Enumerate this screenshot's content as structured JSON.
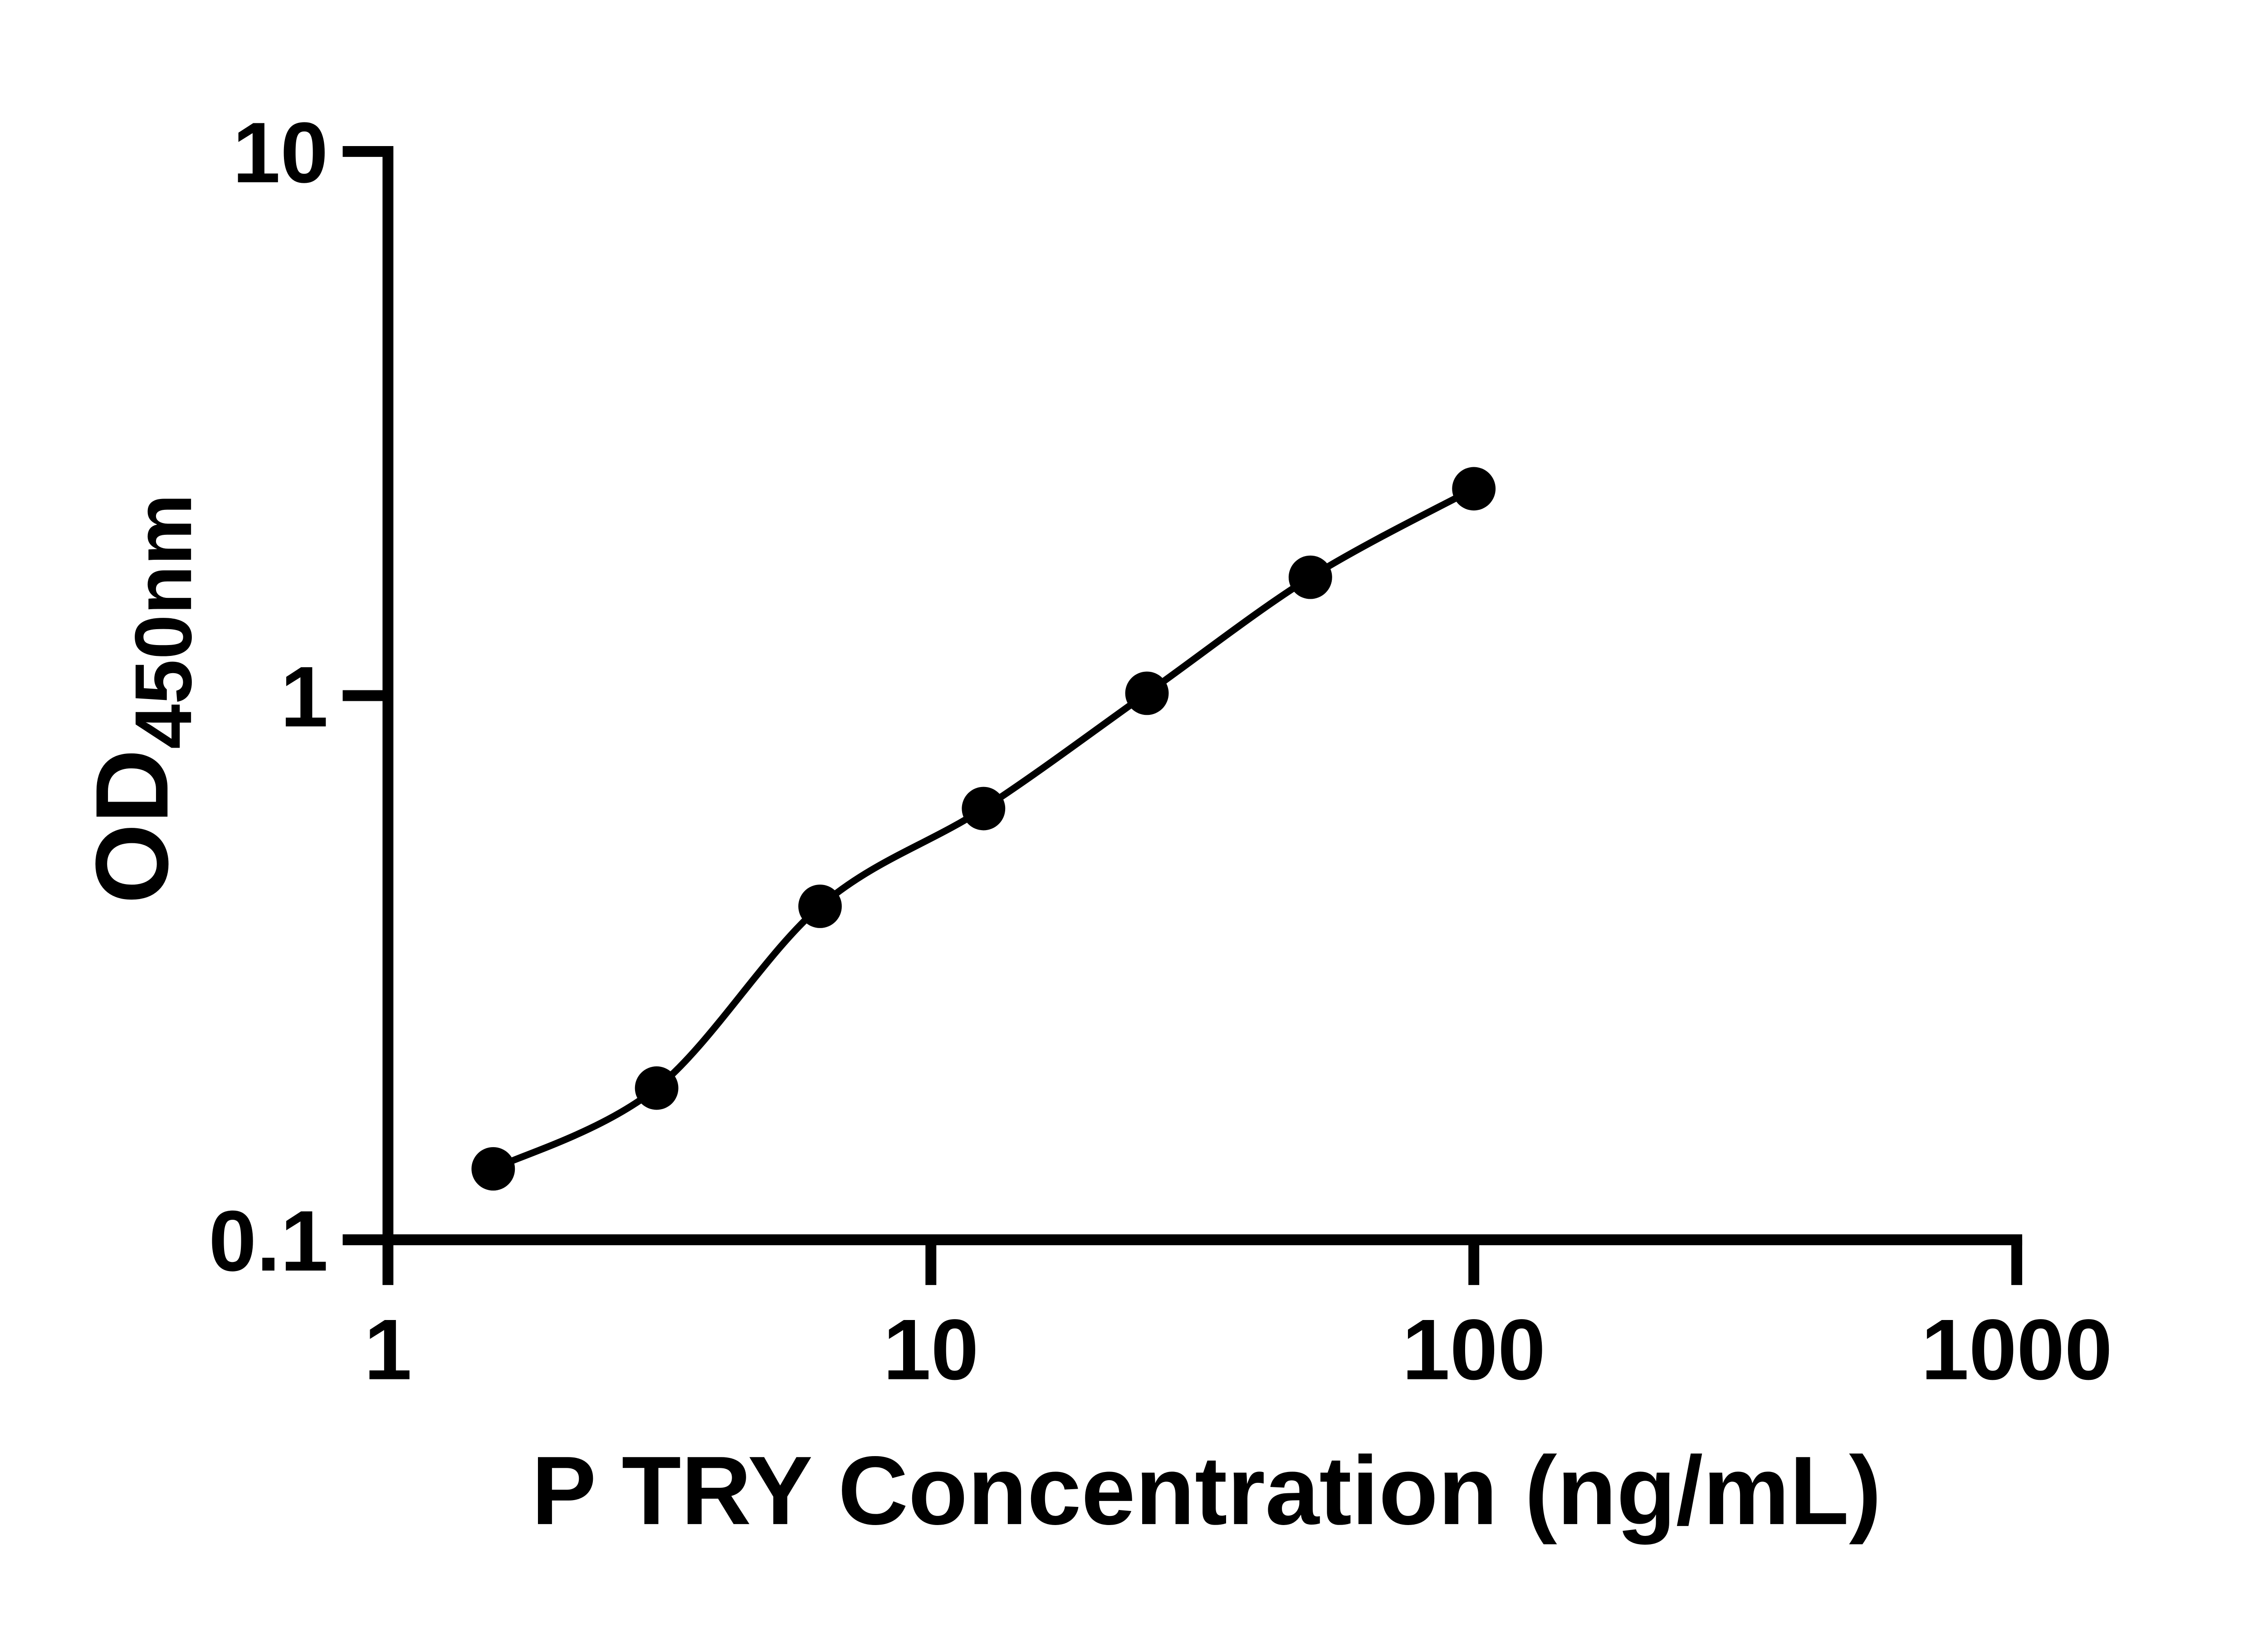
{
  "colors": {
    "ink": "#000000",
    "background": "#ffffff"
  },
  "chart_data": {
    "type": "scatter",
    "title": "",
    "xlabel": "P TRY Concentration (ng/mL)",
    "ylabel_main": "OD",
    "ylabel_sub": "450nm",
    "x_scale": "log10",
    "y_scale": "log10",
    "xlim": [
      1,
      1000
    ],
    "ylim": [
      0.1,
      10
    ],
    "grid": false,
    "legend": false,
    "x_ticks": {
      "values": [
        1,
        10,
        100,
        1000
      ],
      "labels": [
        "1",
        "10",
        "100",
        "1000"
      ]
    },
    "y_ticks": {
      "values": [
        10,
        1,
        0.1
      ],
      "labels": [
        "10",
        "1",
        "0.1"
      ]
    },
    "series": [
      {
        "marker": "filled-circle",
        "line": "smooth-fit-curve",
        "color": "#000000",
        "x": [
          1.5625,
          3.125,
          6.25,
          12.5,
          25,
          50,
          100
        ],
        "y": [
          0.135,
          0.19,
          0.41,
          0.62,
          1.01,
          1.65,
          2.4
        ]
      }
    ]
  }
}
